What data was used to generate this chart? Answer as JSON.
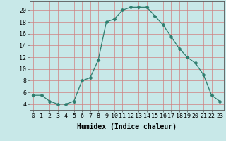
{
  "x": [
    0,
    1,
    2,
    3,
    4,
    5,
    6,
    7,
    8,
    9,
    10,
    11,
    12,
    13,
    14,
    15,
    16,
    17,
    18,
    19,
    20,
    21,
    22,
    23
  ],
  "y": [
    5.5,
    5.5,
    4.5,
    4.0,
    4.0,
    4.5,
    8.0,
    8.5,
    11.5,
    18.0,
    18.5,
    20.0,
    20.5,
    20.5,
    20.5,
    19.0,
    17.5,
    15.5,
    13.5,
    12.0,
    11.0,
    9.0,
    5.5,
    4.5
  ],
  "xlabel": "Humidex (Indice chaleur)",
  "xlim": [
    -0.5,
    23.5
  ],
  "ylim": [
    3,
    21.5
  ],
  "yticks": [
    4,
    6,
    8,
    10,
    12,
    14,
    16,
    18,
    20
  ],
  "xticks": [
    0,
    1,
    2,
    3,
    4,
    5,
    6,
    7,
    8,
    9,
    10,
    11,
    12,
    13,
    14,
    15,
    16,
    17,
    18,
    19,
    20,
    21,
    22,
    23
  ],
  "line_color": "#2e7d6e",
  "marker": "D",
  "marker_size": 2.5,
  "bg_color": "#c8e8e8",
  "grid_color": "#d08080",
  "label_fontsize": 7,
  "tick_fontsize": 6
}
